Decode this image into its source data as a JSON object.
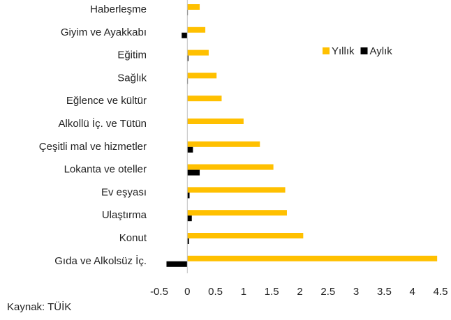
{
  "chart_data": {
    "type": "bar",
    "orientation": "horizontal",
    "categories": [
      "Haberleşme",
      "Giyim ve Ayakkabı",
      "Eğitim",
      "Sağlık",
      "Eğlence ve kültür",
      "Alkollü İç. ve Tütün",
      "Çeşitli mal ve hizmetler",
      "Lokanta ve oteller",
      "Ev eşyası",
      "Ulaştırma",
      "Konut",
      "Gıda ve Alkolsüz İç."
    ],
    "series": [
      {
        "name": "Yıllık",
        "color": "#FFC000",
        "values": [
          0.22,
          0.32,
          0.38,
          0.52,
          0.61,
          1.0,
          1.29,
          1.53,
          1.74,
          1.77,
          2.06,
          4.44
        ]
      },
      {
        "name": "Aylık",
        "color": "#000000",
        "values": [
          0.01,
          -0.1,
          0.02,
          0.01,
          0.0,
          0.0,
          0.1,
          0.22,
          0.04,
          0.08,
          0.03,
          -0.37
        ]
      }
    ],
    "xlim": [
      -0.5,
      4.5
    ],
    "xticks": [
      -0.5,
      0,
      0.5,
      1,
      1.5,
      2,
      2.5,
      3,
      3.5,
      4,
      4.5
    ],
    "grid": false,
    "legend": "upper right",
    "source": "Kaynak: TÜİK"
  }
}
